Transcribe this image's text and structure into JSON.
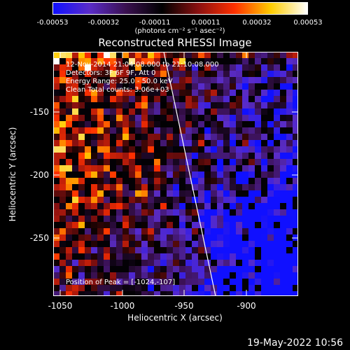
{
  "colorbar": {
    "labels": [
      "-0.00053",
      "-0.00032",
      "-0.00011",
      "0.00011",
      "0.00032",
      "0.00053"
    ],
    "units": "(photons cm⁻² s⁻¹ asec⁻²)"
  },
  "title": "Reconstructed RHESSI Image",
  "annotation": {
    "time_range": "12-Nov-2014 21:04:08.000 to 21:10:08.000",
    "detectors": "Detectors: 3F 6F 9F, Att 0",
    "energy": "Energy Range: 25.0 - 50.0 keV",
    "method": "Clean    Total counts: 3.06e+03",
    "peak": "Position of Peak = [-1024,-107]"
  },
  "axes": {
    "xlabel": "Heliocentric X (arcsec)",
    "ylabel": "Heliocentric Y (arcsec)",
    "xticks": [
      "-1050",
      "-1000",
      "-950",
      "-900"
    ],
    "yticks": [
      "-150",
      "-200",
      "-250"
    ]
  },
  "timestamp": "19-May-2022 10:56",
  "colors": {
    "colormap": [
      "#1010ff",
      "#5a2cc8",
      "#3a1050",
      "#000000",
      "#8a1010",
      "#ff3000",
      "#ffcc00",
      "#ffffff"
    ]
  }
}
